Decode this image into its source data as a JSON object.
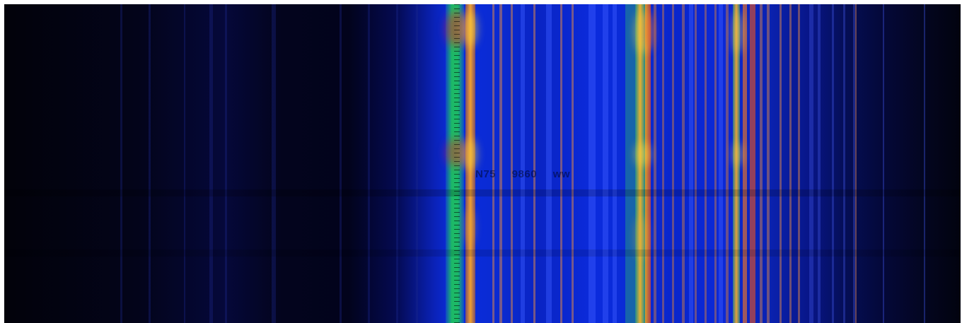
{
  "overlay": {
    "text": "N75   9860 ww"
  },
  "colors": {
    "background": "#03030c",
    "band_blue": "#0b2de0",
    "signal_green": "#1fd83a",
    "signal_yellow": "#f7d23a",
    "signal_red": "#e0361f"
  }
}
